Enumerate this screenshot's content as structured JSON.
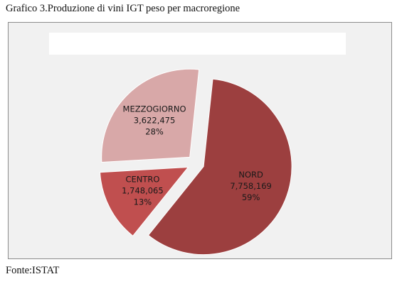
{
  "caption": "Grafico 3.Produzione di vini IGT peso per macroregione",
  "source": "Fonte:ISTAT",
  "chart_data": {
    "type": "pie",
    "title": "",
    "slices": [
      {
        "label": "NORD",
        "value": 7758169,
        "value_text": "7,758,169",
        "percent_text": "59%",
        "color": "#9c3f3f"
      },
      {
        "label": "CENTRO",
        "value": 1748065,
        "value_text": "1,748,065",
        "percent_text": "13%",
        "color": "#c04f4f"
      },
      {
        "label": "MEZZOGIORNO",
        "value": 3622475,
        "value_text": "3,622,475",
        "percent_text": "28%",
        "color": "#d8a8a8"
      }
    ],
    "exploded": true,
    "legend": "none"
  }
}
